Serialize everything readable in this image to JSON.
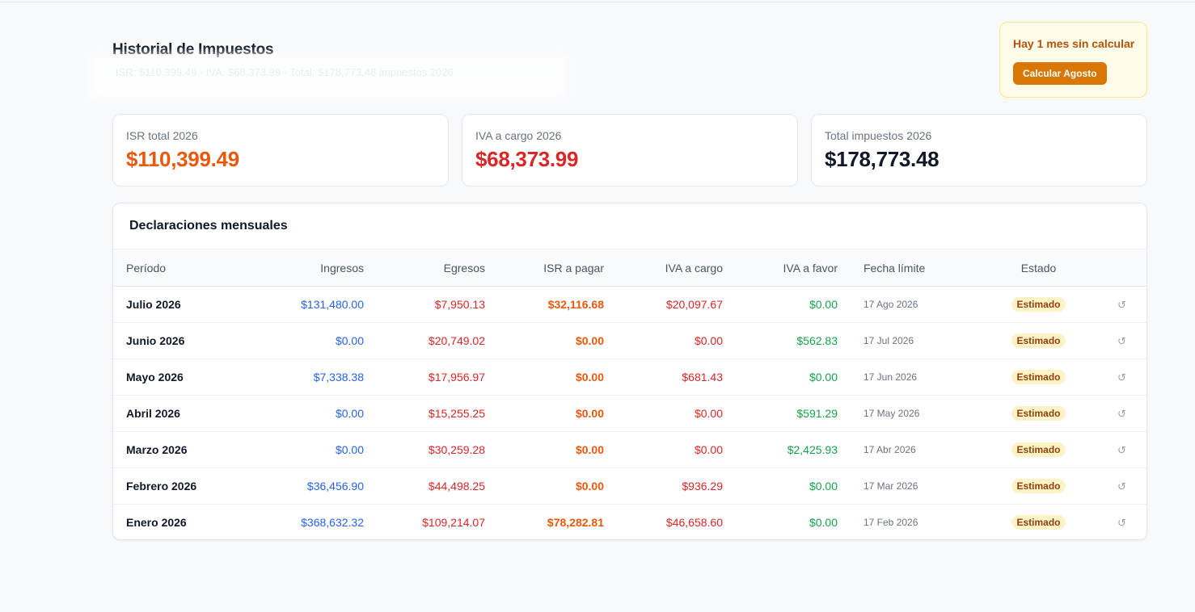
{
  "header": {
    "title": "Historial de Impuestos",
    "subtitle": "ISR: $110,399.49 · IVA: $68,373.99 · Total: $178,773.48 impuestos 2026"
  },
  "alert": {
    "message": "Hay 1 mes sin calcular",
    "button_label": "Calcular Agosto"
  },
  "summary": [
    {
      "label": "ISR total 2026",
      "value": "$110,399.49",
      "color": "#ea580c"
    },
    {
      "label": "IVA a cargo 2026",
      "value": "$68,373.99",
      "color": "#dc2626"
    },
    {
      "label": "Total impuestos 2026",
      "value": "$178,773.48",
      "color": "#111827"
    }
  ],
  "table": {
    "title": "Declaraciones mensuales",
    "columns": [
      "Período",
      "Ingresos",
      "Egresos",
      "ISR a pagar",
      "IVA a cargo",
      "IVA a favor",
      "Fecha límite",
      "Estado"
    ],
    "recalc_icon": "↺",
    "rows": [
      {
        "periodo": "Julio 2026",
        "ingresos": "$131,480.00",
        "egresos": "$7,950.13",
        "isr": "$32,116.68",
        "iva_cargo": "$20,097.67",
        "iva_favor": "$0.00",
        "fecha": "17 Ago 2026",
        "estado": "Estimado"
      },
      {
        "periodo": "Junio 2026",
        "ingresos": "$0.00",
        "egresos": "$20,749.02",
        "isr": "$0.00",
        "iva_cargo": "$0.00",
        "iva_favor": "$562.83",
        "fecha": "17 Jul 2026",
        "estado": "Estimado"
      },
      {
        "periodo": "Mayo 2026",
        "ingresos": "$7,338.38",
        "egresos": "$17,956.97",
        "isr": "$0.00",
        "iva_cargo": "$681.43",
        "iva_favor": "$0.00",
        "fecha": "17 Jun 2026",
        "estado": "Estimado"
      },
      {
        "periodo": "Abril 2026",
        "ingresos": "$0.00",
        "egresos": "$15,255.25",
        "isr": "$0.00",
        "iva_cargo": "$0.00",
        "iva_favor": "$591.29",
        "fecha": "17 May 2026",
        "estado": "Estimado"
      },
      {
        "periodo": "Marzo 2026",
        "ingresos": "$0.00",
        "egresos": "$30,259.28",
        "isr": "$0.00",
        "iva_cargo": "$0.00",
        "iva_favor": "$2,425.93",
        "fecha": "17 Abr 2026",
        "estado": "Estimado"
      },
      {
        "periodo": "Febrero 2026",
        "ingresos": "$36,456.90",
        "egresos": "$44,498.25",
        "isr": "$0.00",
        "iva_cargo": "$936.29",
        "iva_favor": "$0.00",
        "fecha": "17 Mar 2026",
        "estado": "Estimado"
      },
      {
        "periodo": "Enero 2026",
        "ingresos": "$368,632.32",
        "egresos": "$109,214.07",
        "isr": "$78,282.81",
        "iva_cargo": "$46,658.60",
        "iva_favor": "$0.00",
        "fecha": "17 Feb 2026",
        "estado": "Estimado"
      }
    ]
  }
}
